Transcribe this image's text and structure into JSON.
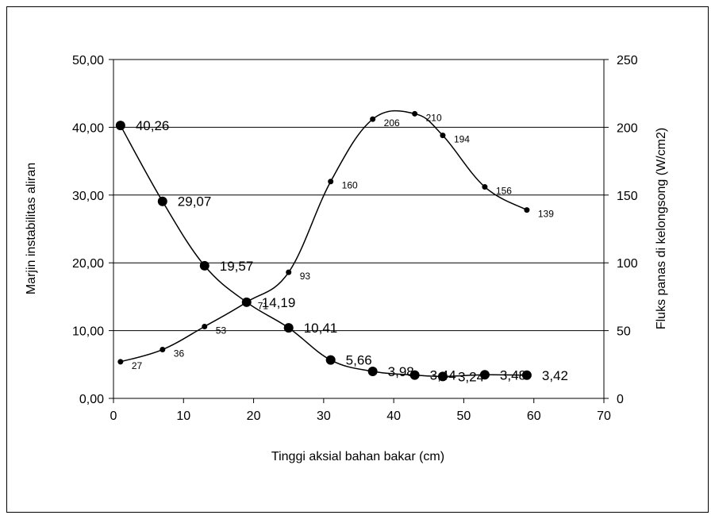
{
  "chart_data": {
    "type": "line",
    "xlabel": "Tinggi aksial bahan bakar (cm)",
    "ylabel": "Marjin instabilitas aliran",
    "y2label": "Fluks panas di kelongsong (W/cm2)",
    "xlim": [
      0,
      70
    ],
    "ylim": [
      0,
      50
    ],
    "y2lim": [
      0,
      250
    ],
    "grid": "horizontal",
    "legend": "none",
    "x_ticks": [
      "0",
      "10",
      "20",
      "30",
      "40",
      "50",
      "60",
      "70"
    ],
    "y_ticks": [
      "0,00",
      "10,00",
      "20,00",
      "30,00",
      "40,00",
      "50,00"
    ],
    "y2_ticks": [
      "0",
      "50",
      "100",
      "150",
      "200",
      "250"
    ],
    "series": [
      {
        "axis": "left",
        "x": [
          1,
          7,
          13,
          19,
          25,
          31,
          37,
          43,
          47,
          53,
          59
        ],
        "values": [
          40.26,
          29.07,
          19.57,
          14.19,
          10.41,
          5.66,
          3.98,
          3.44,
          3.24,
          3.48,
          3.42
        ],
        "labels": [
          "40,26",
          "29,07",
          "19,57",
          "14,19",
          "10,41",
          "5,66",
          "3,98",
          "3,44",
          "3,24",
          "3,48",
          "3,42"
        ]
      },
      {
        "axis": "right",
        "x": [
          1,
          7,
          13,
          19,
          25,
          31,
          37,
          43,
          47,
          53,
          59
        ],
        "values": [
          27,
          36,
          53,
          71,
          93,
          160,
          206,
          210,
          194,
          156,
          139
        ],
        "labels": [
          "27",
          "36",
          "53",
          "71",
          "93",
          "160",
          "206",
          "210",
          "194",
          "156",
          "139"
        ]
      }
    ]
  }
}
